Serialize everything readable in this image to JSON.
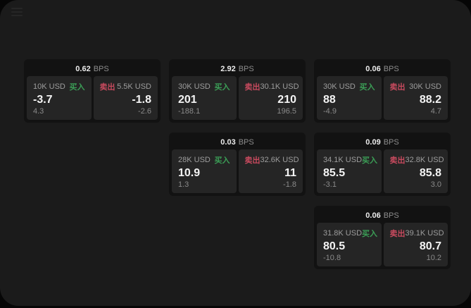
{
  "window": {
    "bg": "#1b1b1b",
    "outer_bg": "#060606"
  },
  "colors": {
    "buy_green": "#3b9e56",
    "sell_red": "#c84a5e",
    "card_bg": "#121212",
    "panel_bg": "#252525"
  },
  "icons": {
    "menu": "hamburger-menu"
  },
  "labels": {
    "bps": "BPS",
    "buy": "买入",
    "sell": "卖出"
  },
  "cards": [
    {
      "col": 1,
      "row": 1,
      "bps": "0.62",
      "buy": {
        "amount": "10K USD",
        "value": "-3.7",
        "delta": "4.3"
      },
      "sell": {
        "amount": "5.5K USD",
        "value": "-1.8",
        "delta": "-2.6"
      }
    },
    {
      "col": 2,
      "row": 1,
      "bps": "2.92",
      "buy": {
        "amount": "30K USD",
        "value": "201",
        "delta": "-188.1"
      },
      "sell": {
        "amount": "30.1K USD",
        "value": "210",
        "delta": "196.5"
      }
    },
    {
      "col": 3,
      "row": 1,
      "bps": "0.06",
      "buy": {
        "amount": "30K USD",
        "value": "88",
        "delta": "-4.9"
      },
      "sell": {
        "amount": "30K USD",
        "value": "88.2",
        "delta": "4.7"
      }
    },
    {
      "col": 2,
      "row": 2,
      "bps": "0.03",
      "buy": {
        "amount": "28K USD",
        "value": "10.9",
        "delta": "1.3"
      },
      "sell": {
        "amount": "32.6K USD",
        "value": "11",
        "delta": "-1.8"
      }
    },
    {
      "col": 3,
      "row": 2,
      "bps": "0.09",
      "buy": {
        "amount": "34.1K USD",
        "value": "85.5",
        "delta": "-3.1"
      },
      "sell": {
        "amount": "32.8K USD",
        "value": "85.8",
        "delta": "3.0"
      }
    },
    {
      "col": 3,
      "row": 3,
      "bps": "0.06",
      "buy": {
        "amount": "31.8K USD",
        "value": "80.5",
        "delta": "-10.8"
      },
      "sell": {
        "amount": "39.1K USD",
        "value": "80.7",
        "delta": "10.2"
      }
    }
  ]
}
